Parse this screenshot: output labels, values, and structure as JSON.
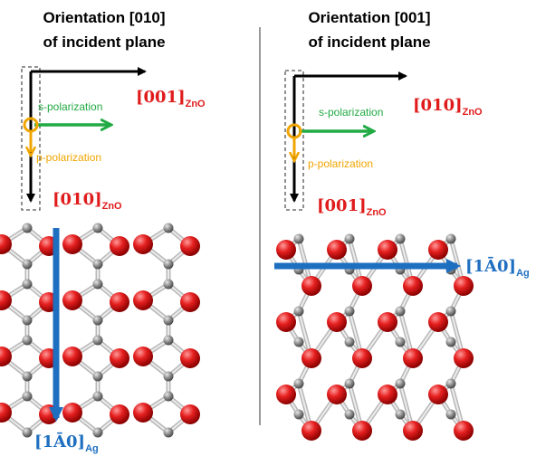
{
  "left_panel": {
    "title_line1": "Orientation [010]",
    "title_line2": "of incident plane",
    "label_horizontal": "[001]",
    "label_horizontal_sub": "ZnO",
    "label_vertical": "[010]",
    "label_vertical_sub": "ZnO",
    "s_polarization": "s-polarization",
    "p_polarization": "p-polarization",
    "substrate_direction": "[1Ā0]",
    "substrate_direction_sub": "Ag"
  },
  "right_panel": {
    "title_line1": "Orientation [001]",
    "title_line2": "of incident plane",
    "label_horizontal": "[010]",
    "label_horizontal_sub": "ZnO",
    "label_vertical": "[001]",
    "label_vertical_sub": "ZnO",
    "s_polarization": "s-polarization",
    "p_polarization": "p-polarization",
    "substrate_direction": "[1Ā0]",
    "substrate_direction_sub": "Ag"
  },
  "colors": {
    "axis_arrow": "#000000",
    "s_polarization": "#22aa44",
    "p_polarization": "#f0a500",
    "crystal_label": "#e01b1b",
    "substrate_arrow": "#1f6fc0",
    "oxygen_atom": "#e02020",
    "zinc_atom": "#909090"
  }
}
